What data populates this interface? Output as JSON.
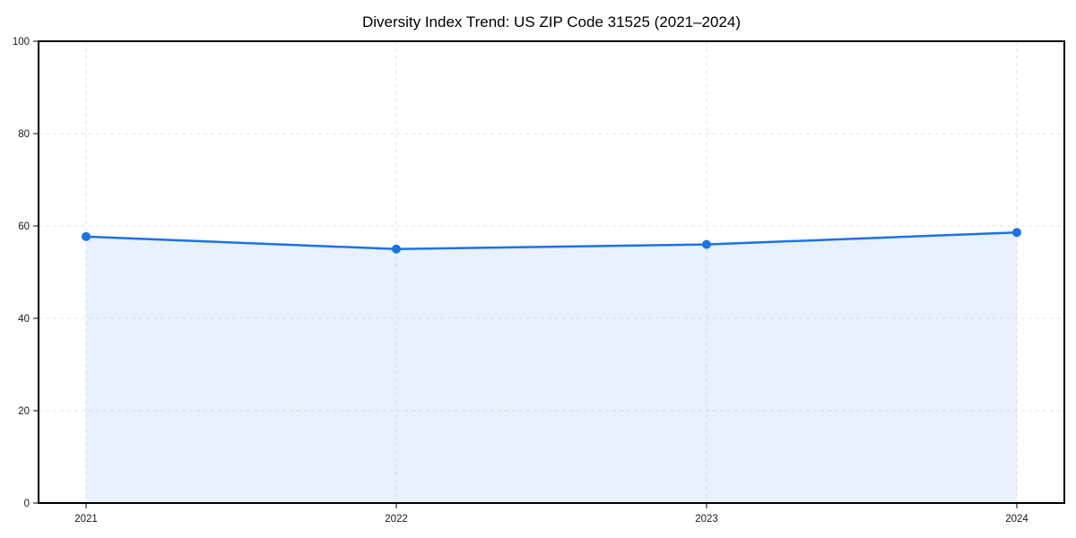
{
  "chart_data": {
    "type": "area",
    "title": "Diversity Index Trend: US ZIP Code 31525 (2021–2024)",
    "x": [
      "2021",
      "2022",
      "2023",
      "2024"
    ],
    "series": [
      {
        "name": "Diversity Index",
        "values": [
          57.7,
          55.0,
          56.0,
          58.6
        ]
      }
    ],
    "xlabel": "",
    "ylabel": "",
    "ylim": [
      0,
      100
    ],
    "yticks": [
      0,
      20,
      40,
      60,
      80,
      100
    ],
    "grid": "dashed-both-axes",
    "legend_position": "none",
    "marker": "circle",
    "colors": {
      "line": "#1a73e8",
      "marker": "#1a73e8",
      "area_fill": "rgba(26,115,232,0.10)",
      "grid": "#e3e3e3",
      "axis": "#000000",
      "tick_label": "#1a1a1a",
      "background": "#ffffff"
    }
  }
}
